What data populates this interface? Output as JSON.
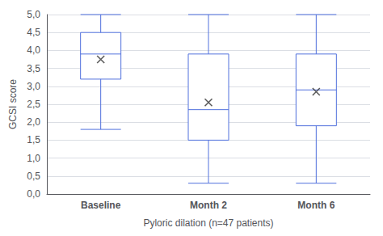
{
  "chart_data": {
    "type": "boxplot",
    "categories": [
      "Baseline",
      "Month 2",
      "Month 6"
    ],
    "values": [
      [
        1.8,
        3.2,
        3.9,
        4.5,
        5.0
      ],
      [
        0.3,
        1.5,
        2.35,
        3.9,
        5.0
      ],
      [
        0.3,
        1.9,
        2.9,
        3.9,
        5.0
      ]
    ],
    "means": [
      3.75,
      2.55,
      2.85
    ],
    "marker": "x",
    "xlabel": "Pyloric dilation (n=47 patients)",
    "ylabel": "GCSI score",
    "ylim": [
      0.0,
      5.0
    ],
    "yticks": [
      {
        "value": 0.0,
        "label": "0,0"
      },
      {
        "value": 0.5,
        "label": "0,5"
      },
      {
        "value": 1.0,
        "label": "1,0"
      },
      {
        "value": 1.5,
        "label": "1,5"
      },
      {
        "value": 2.0,
        "label": "2,0"
      },
      {
        "value": 2.5,
        "label": "2,5"
      },
      {
        "value": 3.0,
        "label": "3,0"
      },
      {
        "value": 3.5,
        "label": "3,5"
      },
      {
        "value": 4.0,
        "label": "4,0"
      },
      {
        "value": 4.5,
        "label": "4,5"
      },
      {
        "value": 5.0,
        "label": "5,0"
      }
    ],
    "grid": true
  }
}
